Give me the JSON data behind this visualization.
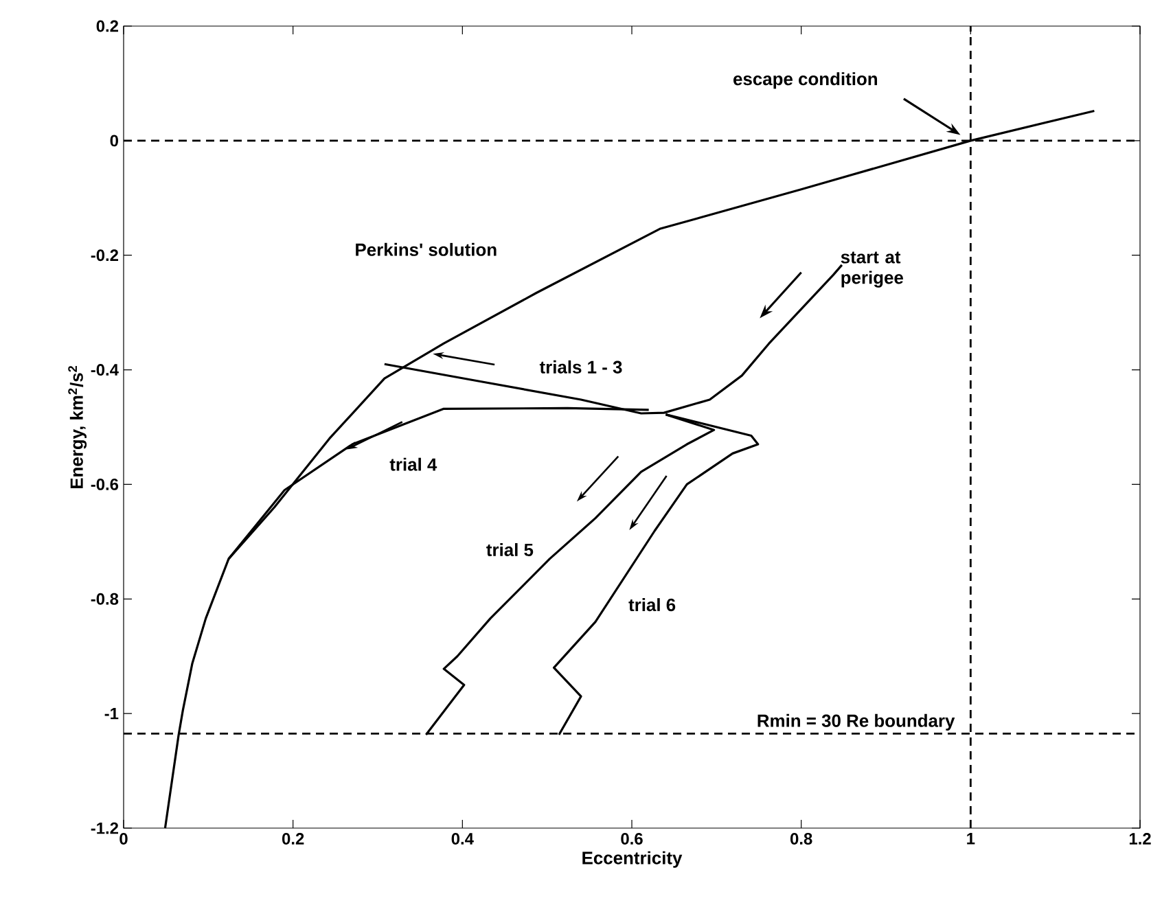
{
  "chart_data": {
    "type": "line",
    "xlabel": "Eccentricity",
    "ylabel": "Energy, km$^{2}$/s$^{2}$",
    "xlim": [
      0,
      1.2
    ],
    "ylim": [
      -1.2,
      0.2
    ],
    "xticks": [
      0,
      0.2,
      0.4,
      0.6,
      0.8,
      1,
      1.2
    ],
    "yticks": [
      -1.2,
      -1,
      -0.8,
      -0.6,
      -0.4,
      -0.2,
      0,
      0.2
    ],
    "series": [
      {
        "name": "Perkins' solution",
        "color": "#000000",
        "x": [
          0.049,
          0.065,
          0.07,
          0.081,
          0.097,
          0.124,
          0.178,
          0.243,
          0.308,
          0.378,
          0.487,
          0.633,
          0.8,
          1.0,
          1.146
        ],
        "values": [
          -1.2,
          -1.037,
          -0.994,
          -0.913,
          -0.834,
          -0.73,
          -0.64,
          -0.52,
          -0.415,
          -0.354,
          -0.266,
          -0.154,
          -0.085,
          0,
          0.052
        ]
      },
      {
        "name": "trials 1 - 3",
        "color": "#000000",
        "x": [
          0.848,
          0.838,
          0.762,
          0.73,
          0.692,
          0.638,
          0.611,
          0.54,
          0.42,
          0.308
        ],
        "values": [
          -0.217,
          -0.234,
          -0.354,
          -0.41,
          -0.452,
          -0.475,
          -0.476,
          -0.452,
          -0.42,
          -0.39
        ]
      },
      {
        "name": "trial 4",
        "color": "#000000",
        "x": [
          0.62,
          0.524,
          0.378,
          0.27,
          0.19,
          0.124
        ],
        "values": [
          -0.47,
          -0.467,
          -0.468,
          -0.53,
          -0.61,
          -0.73
        ]
      },
      {
        "name": "trial 5",
        "color": "#000000",
        "x": [
          0.64,
          0.697,
          0.665,
          0.611,
          0.557,
          0.503,
          0.433,
          0.394,
          0.378,
          0.402,
          0.357
        ],
        "values": [
          -0.478,
          -0.505,
          -0.53,
          -0.578,
          -0.659,
          -0.73,
          -0.834,
          -0.9,
          -0.922,
          -0.95,
          -1.037
        ]
      },
      {
        "name": "trial 6",
        "color": "#000000",
        "x": [
          0.64,
          0.741,
          0.749,
          0.719,
          0.665,
          0.627,
          0.557,
          0.508,
          0.54,
          0.514
        ],
        "values": [
          -0.478,
          -0.515,
          -0.53,
          -0.546,
          -0.6,
          -0.681,
          -0.84,
          -0.92,
          -0.97,
          -1.037
        ]
      }
    ],
    "ref_lines": [
      {
        "axis": "y",
        "value": 0,
        "color": "#000000",
        "line_style": "dashed"
      },
      {
        "axis": "x",
        "value": 1,
        "color": "#000000",
        "line_style": "dashed"
      },
      {
        "axis": "y",
        "value": -1.035,
        "color": "#000000",
        "line_style": "dashed"
      }
    ],
    "annotations": [
      "escape condition",
      "start at perigee",
      "Rmin = 30 Re boundary"
    ]
  }
}
